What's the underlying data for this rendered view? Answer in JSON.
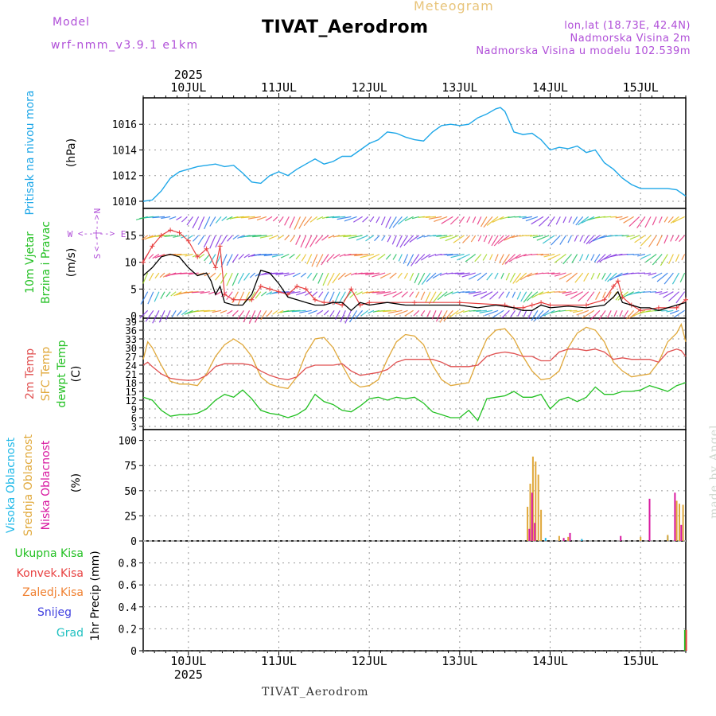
{
  "header": {
    "meteogram_label": "Meteogram",
    "model_label": "Model",
    "model_name": "wrf-nmm_v3.9.1  e1km",
    "station": "TIVAT_Aerodrom",
    "lonlat": "lon,lat (18.73E, 42.4N)",
    "elevation": "Nadmorska Visina 2m",
    "model_elevation": "Nadmorska Visina u modelu 102.539m"
  },
  "footer": {
    "station": "TIVAT_Aerodrom",
    "credit": "made by Angel"
  },
  "colors": {
    "pressure": "#1ea7e8",
    "wind_title": "#22c022",
    "wind_speed": "#000000",
    "gust": "#e84040",
    "temp2m": "#e05050",
    "sfc_temp": "#e0a83a",
    "dewpt": "#22c022",
    "cloud_high": "#1eb8e8",
    "cloud_mid": "#e0a83a",
    "cloud_low": "#d818a0",
    "precip_total": "#22c022",
    "precip_conv": "#e84040",
    "precip_frozen": "#f08030",
    "snow": "#4040e0",
    "graupel": "#20c0c0",
    "compass": "#b04fd8"
  },
  "chart_data": [
    {
      "type": "line",
      "title": "Pritisak na nivou mora",
      "ylabel": "(hPa)",
      "ylim": [
        1010,
        1017.5
      ],
      "yticks": [
        "1010",
        "1012",
        "1014",
        "1016"
      ],
      "x_year": "2025",
      "x_date_labels": [
        "10JUL",
        "11JUL",
        "12JUL",
        "13JUL",
        "14JUL",
        "15JUL"
      ],
      "grid": true,
      "series": [
        {
          "x": [
            9.5,
            9.6,
            9.7,
            9.8,
            9.9,
            10.0,
            10.1,
            10.2,
            10.3,
            10.4,
            10.5,
            10.6,
            10.7,
            10.8,
            10.9,
            11.0,
            11.1,
            11.2,
            11.3,
            11.4,
            11.5,
            11.6,
            11.7,
            11.8,
            11.9,
            12.0,
            12.1,
            12.2,
            12.3,
            12.4,
            12.5,
            12.6,
            12.7,
            12.8,
            12.9,
            13.0,
            13.1,
            13.2,
            13.3,
            13.4,
            13.45,
            13.5,
            13.6,
            13.7,
            13.8,
            13.9,
            14.0,
            14.1,
            14.2,
            14.3,
            14.4,
            14.5,
            14.6,
            14.7,
            14.8,
            14.9,
            15.0,
            15.1,
            15.2,
            15.3,
            15.4,
            15.5
          ],
          "values": [
            1010.0,
            1010.1,
            1010.8,
            1011.8,
            1012.3,
            1012.5,
            1012.7,
            1012.8,
            1012.9,
            1012.7,
            1012.8,
            1012.2,
            1011.5,
            1011.4,
            1012.0,
            1012.3,
            1012.0,
            1012.5,
            1012.9,
            1013.3,
            1012.9,
            1013.1,
            1013.5,
            1013.5,
            1014.0,
            1014.5,
            1014.8,
            1015.4,
            1015.3,
            1015.0,
            1014.8,
            1014.7,
            1015.4,
            1015.9,
            1016.0,
            1015.9,
            1016.0,
            1016.5,
            1016.8,
            1017.2,
            1017.3,
            1017.0,
            1015.4,
            1015.2,
            1015.3,
            1014.8,
            1014.0,
            1014.2,
            1014.1,
            1014.3,
            1013.8,
            1014.0,
            1013.0,
            1012.5,
            1011.8,
            1011.3,
            1011.0,
            1011.0,
            1011.0,
            1011.0,
            1010.9,
            1010.4
          ]
        }
      ]
    },
    {
      "type": "line",
      "title": "10m Vjetar Brzina i Pravac",
      "ylabel": "(m/s)",
      "ylim": [
        0,
        19
      ],
      "yticks": [
        "0",
        "5",
        "10",
        "15"
      ],
      "compass_labels": [
        "N",
        "W",
        "E",
        "S"
      ],
      "compass_text": "<--|-->",
      "grid": true,
      "series": [
        {
          "x": [
            9.5,
            9.6,
            9.7,
            9.8,
            9.9,
            10.0,
            10.1,
            10.2,
            10.25,
            10.3,
            10.35,
            10.4,
            10.5,
            10.6,
            10.7,
            10.8,
            10.9,
            11.0,
            11.1,
            11.2,
            11.3,
            11.4,
            11.5,
            11.6,
            11.7,
            11.8,
            11.9,
            12.0,
            12.2,
            12.4,
            12.6,
            12.8,
            13.0,
            13.2,
            13.4,
            13.6,
            13.7,
            13.8,
            13.9,
            14.0,
            14.2,
            14.4,
            14.6,
            14.7,
            14.75,
            14.8,
            14.9,
            15.0,
            15.1,
            15.2,
            15.3,
            15.4,
            15.5
          ],
          "values": [
            7.5,
            9.0,
            11.0,
            11.5,
            11.0,
            9.0,
            7.5,
            8.0,
            6.5,
            4.0,
            5.5,
            2.5,
            2.0,
            2.0,
            4.0,
            8.5,
            8.0,
            6.0,
            3.5,
            3.0,
            2.5,
            2.0,
            2.0,
            2.5,
            2.5,
            1.0,
            2.5,
            2.0,
            2.5,
            2.0,
            2.0,
            2.0,
            2.0,
            1.5,
            2.0,
            1.5,
            1.0,
            1.0,
            2.0,
            1.5,
            1.8,
            1.5,
            2.0,
            3.5,
            4.5,
            2.5,
            2.0,
            1.5,
            1.5,
            1.0,
            1.5,
            2.0,
            2.5
          ]
        },
        {
          "x": [
            9.5,
            9.6,
            9.7,
            9.8,
            9.9,
            10.0,
            10.1,
            10.2,
            10.3,
            10.35,
            10.4,
            10.5,
            10.7,
            10.8,
            10.9,
            11.0,
            11.1,
            11.2,
            11.3,
            11.4,
            11.5,
            11.6,
            11.7,
            11.8,
            11.9,
            12.0,
            12.5,
            13.0,
            13.5,
            13.6,
            13.7,
            13.8,
            13.9,
            14.0,
            14.4,
            14.6,
            14.7,
            14.75,
            14.8,
            14.9,
            15.0,
            15.2,
            15.4,
            15.5
          ],
          "values": [
            10.0,
            13.0,
            15.0,
            16.0,
            15.5,
            14.0,
            11.0,
            12.5,
            9.0,
            13.0,
            4.0,
            3.0,
            3.0,
            5.5,
            5.0,
            4.5,
            4.0,
            5.5,
            5.0,
            3.0,
            2.5,
            2.5,
            2.0,
            5.0,
            2.0,
            2.5,
            2.5,
            2.5,
            2.0,
            1.5,
            1.5,
            2.0,
            2.5,
            2.0,
            2.0,
            3.0,
            5.5,
            6.5,
            3.5,
            2.0,
            1.0,
            1.5,
            1.5,
            3.0
          ]
        }
      ]
    },
    {
      "type": "line",
      "title": "2m Temp, SFC Temp, dewpt Temp",
      "ylabel": "(C)",
      "ylim": [
        3,
        39
      ],
      "yticks": [
        "3",
        "6",
        "9",
        "12",
        "15",
        "18",
        "21",
        "24",
        "27",
        "30",
        "33",
        "36",
        "39"
      ],
      "grid": true,
      "series": [
        {
          "name": "2m Temp",
          "x": [
            9.5,
            9.55,
            9.6,
            9.7,
            9.8,
            9.9,
            10.0,
            10.1,
            10.2,
            10.3,
            10.4,
            10.5,
            10.6,
            10.7,
            10.8,
            10.9,
            11.0,
            11.1,
            11.2,
            11.3,
            11.4,
            11.5,
            11.6,
            11.7,
            11.8,
            11.9,
            12.0,
            12.1,
            12.2,
            12.3,
            12.4,
            12.5,
            12.6,
            12.7,
            12.8,
            12.9,
            13.0,
            13.1,
            13.2,
            13.3,
            13.4,
            13.5,
            13.6,
            13.7,
            13.8,
            13.9,
            14.0,
            14.1,
            14.2,
            14.3,
            14.4,
            14.5,
            14.6,
            14.7,
            14.8,
            14.9,
            15.0,
            15.1,
            15.2,
            15.3,
            15.4,
            15.45,
            15.5
          ],
          "values": [
            24.0,
            25.0,
            23.5,
            21.0,
            19.5,
            19.0,
            18.8,
            19.0,
            20.5,
            23.5,
            24.5,
            24.5,
            24.5,
            24.0,
            22.0,
            20.5,
            19.5,
            19.0,
            20.0,
            23.0,
            24.0,
            24.0,
            24.0,
            24.5,
            22.0,
            20.5,
            21.0,
            21.5,
            22.5,
            25.0,
            26.0,
            26.0,
            26.0,
            26.0,
            25.0,
            23.5,
            23.5,
            23.5,
            24.0,
            27.0,
            28.0,
            28.5,
            28.0,
            27.0,
            27.0,
            25.5,
            25.5,
            28.5,
            29.5,
            29.5,
            29.0,
            29.5,
            28.5,
            26.0,
            26.5,
            26.0,
            26.0,
            26.0,
            25.0,
            28.5,
            29.5,
            29.0,
            27.0
          ]
        },
        {
          "name": "SFC Temp",
          "x": [
            9.5,
            9.55,
            9.6,
            9.7,
            9.8,
            9.9,
            10.0,
            10.1,
            10.2,
            10.3,
            10.4,
            10.5,
            10.6,
            10.7,
            10.8,
            10.9,
            11.0,
            11.1,
            11.2,
            11.3,
            11.4,
            11.5,
            11.6,
            11.7,
            11.8,
            11.9,
            12.0,
            12.1,
            12.2,
            12.3,
            12.4,
            12.5,
            12.6,
            12.7,
            12.8,
            12.9,
            13.0,
            13.1,
            13.2,
            13.3,
            13.4,
            13.5,
            13.6,
            13.7,
            13.8,
            13.9,
            14.0,
            14.1,
            14.2,
            14.3,
            14.4,
            14.5,
            14.6,
            14.7,
            14.8,
            14.9,
            15.0,
            15.1,
            15.2,
            15.3,
            15.4,
            15.45,
            15.5
          ],
          "values": [
            26.0,
            32.0,
            30.0,
            24.0,
            18.5,
            17.5,
            17.5,
            17.0,
            21.0,
            27.0,
            31.0,
            33.0,
            31.0,
            27.0,
            20.0,
            17.5,
            16.5,
            16.0,
            20.0,
            28.0,
            33.0,
            33.5,
            30.0,
            24.0,
            18.5,
            16.5,
            17.0,
            19.0,
            26.0,
            32.0,
            34.5,
            34.0,
            31.0,
            24.0,
            19.0,
            17.0,
            17.5,
            18.0,
            26.0,
            33.0,
            36.0,
            36.5,
            33.0,
            27.0,
            22.0,
            19.0,
            19.5,
            22.0,
            30.0,
            35.0,
            37.0,
            36.0,
            32.0,
            25.0,
            22.0,
            20.0,
            20.5,
            21.0,
            25.0,
            32.0,
            35.0,
            38.0,
            32.0
          ]
        },
        {
          "name": "dewpt Temp",
          "x": [
            9.5,
            9.6,
            9.7,
            9.8,
            9.9,
            10.0,
            10.1,
            10.2,
            10.3,
            10.4,
            10.5,
            10.6,
            10.7,
            10.8,
            10.9,
            11.0,
            11.1,
            11.2,
            11.3,
            11.4,
            11.5,
            11.6,
            11.7,
            11.8,
            11.9,
            12.0,
            12.1,
            12.2,
            12.3,
            12.4,
            12.5,
            12.6,
            12.7,
            12.8,
            12.9,
            13.0,
            13.1,
            13.2,
            13.3,
            13.4,
            13.5,
            13.6,
            13.7,
            13.8,
            13.9,
            14.0,
            14.1,
            14.2,
            14.3,
            14.4,
            14.5,
            14.6,
            14.7,
            14.8,
            14.9,
            15.0,
            15.1,
            15.2,
            15.3,
            15.4,
            15.5
          ],
          "values": [
            13.0,
            12.0,
            8.5,
            6.5,
            7.0,
            7.0,
            7.5,
            9.0,
            12.0,
            14.0,
            13.0,
            15.5,
            12.5,
            8.5,
            7.5,
            7.0,
            6.0,
            7.0,
            9.0,
            14.0,
            11.5,
            10.5,
            8.5,
            8.0,
            10.0,
            12.5,
            13.0,
            12.0,
            13.0,
            12.5,
            13.0,
            11.0,
            8.0,
            7.0,
            6.0,
            6.0,
            8.5,
            5.0,
            12.5,
            13.0,
            13.5,
            15.0,
            13.0,
            13.0,
            14.0,
            9.0,
            12.0,
            13.0,
            11.5,
            13.0,
            16.5,
            14.0,
            14.0,
            15.0,
            15.0,
            15.5,
            17.0,
            16.0,
            15.0,
            17.0,
            18.0
          ]
        }
      ]
    },
    {
      "type": "bar",
      "title": "Visoka Oblacnost, Srednja Oblacnost, Niska Oblacnost",
      "ylabel": "(%)",
      "ylim": [
        0,
        110
      ],
      "yticks": [
        "0",
        "25",
        "50",
        "75",
        "100"
      ],
      "grid": true,
      "series": [
        {
          "name": "Visoka Oblacnost",
          "x": [
            13.95,
            14.35,
            15.3
          ],
          "values": [
            3,
            2,
            5
          ]
        },
        {
          "name": "Srednja Oblacnost",
          "x": [
            13.75,
            13.78,
            13.81,
            13.84,
            13.87,
            13.9,
            14.1,
            14.2,
            15.0,
            15.3,
            15.4,
            15.43,
            15.47
          ],
          "values": [
            34,
            57,
            84,
            79,
            66,
            31,
            5,
            4,
            4,
            6,
            40,
            37,
            36
          ]
        },
        {
          "name": "Niska Oblacnost",
          "x": [
            13.77,
            13.8,
            13.83,
            14.15,
            14.22,
            14.78,
            15.1,
            15.38,
            15.45
          ],
          "values": [
            12,
            48,
            18,
            3,
            8,
            5,
            42,
            48,
            16
          ]
        }
      ]
    },
    {
      "type": "bar",
      "title": "1hr Precip",
      "ylabel": "(mm)",
      "ylim": [
        0,
        1.0
      ],
      "yticks": [
        "0",
        "0.2",
        "0.4",
        "0.6",
        "0.8"
      ],
      "grid": true,
      "legend": [
        "Ukupna Kisa",
        "Konvek.Kisa",
        "Zaledj.Kisa",
        "Snijeg",
        "Grad"
      ],
      "series": [
        {
          "name": "Ukupna Kisa",
          "x": [
            15.49
          ],
          "values": [
            0.19
          ]
        },
        {
          "name": "Konvek.Kisa",
          "x": [
            15.505
          ],
          "values": [
            0.19
          ]
        }
      ]
    }
  ]
}
